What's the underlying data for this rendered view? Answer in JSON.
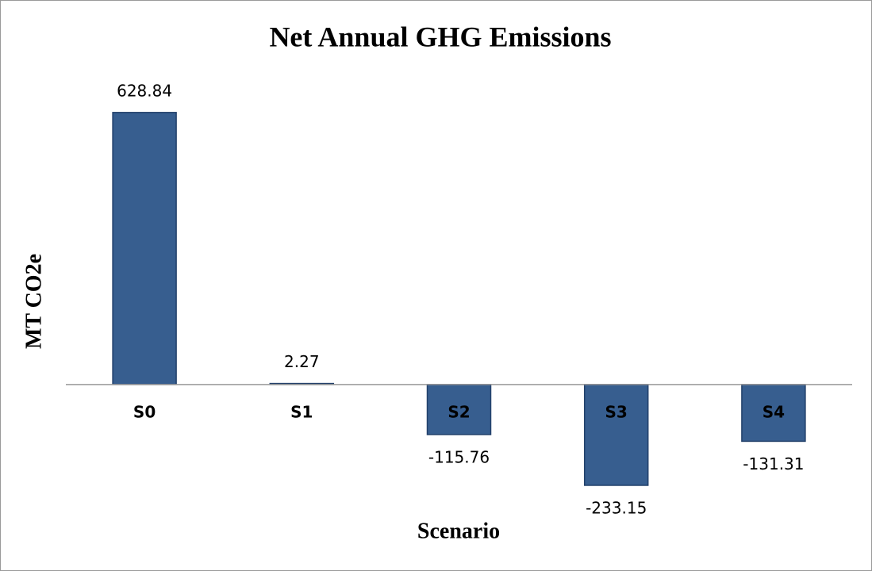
{
  "chart_data": {
    "type": "bar",
    "title": "Net Annual GHG Emissions",
    "x_label": "Scenario",
    "y_label": "MT CO2e",
    "categories": [
      "S0",
      "S1",
      "S2",
      "S3",
      "S4"
    ],
    "values": [
      628.84,
      2.27,
      -115.76,
      -233.15,
      -131.31
    ],
    "color": "#375e8f",
    "ylim": [
      -400,
      700
    ]
  }
}
